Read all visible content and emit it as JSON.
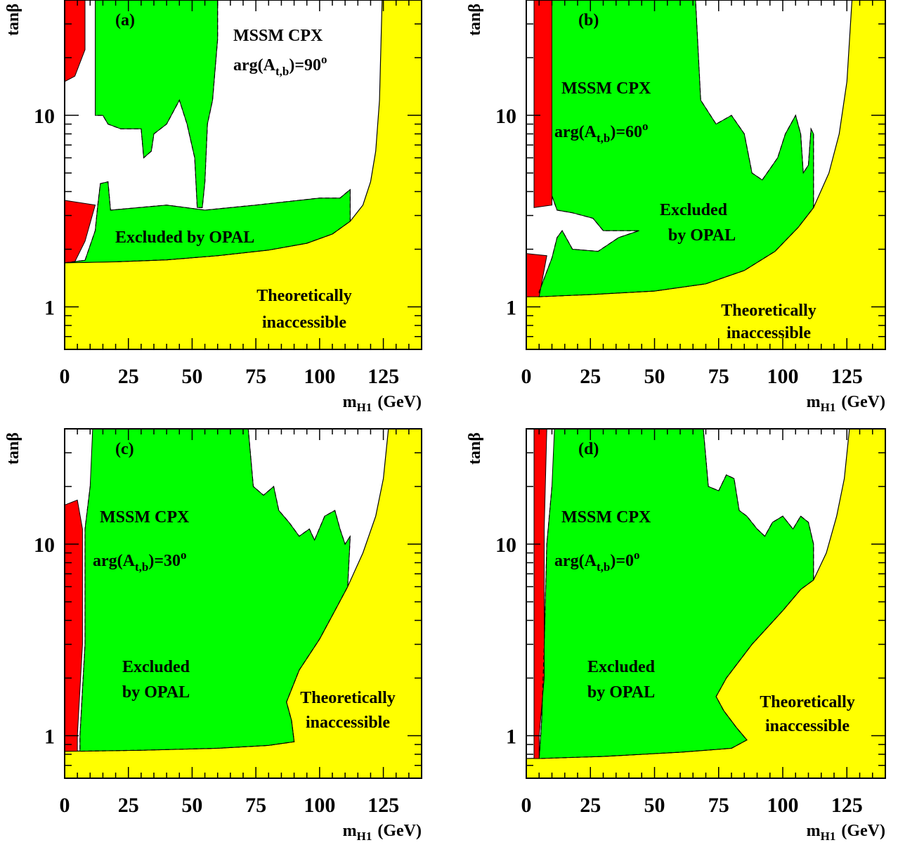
{
  "colors": {
    "excluded": "#00ff00",
    "theory": "#ffff00",
    "red": "#ff0000",
    "border": "#000000",
    "background": "#ffffff"
  },
  "chart_data": [
    {
      "panel": "(a)",
      "type": "area",
      "xlabel": "m",
      "xlabel_sub": "H1",
      "xlabel_unit": "(GeV)",
      "ylabel": "tanβ",
      "xlim": [
        0,
        140
      ],
      "ylim": [
        0.6,
        40
      ],
      "yscale": "log",
      "xticks": [
        "0",
        "25",
        "50",
        "75",
        "100",
        "125"
      ],
      "yticks": [
        "1",
        "10"
      ],
      "annotations": {
        "model": "MSSM CPX",
        "phase": "arg(A",
        "phase_sub": "t,b",
        "phase_value": ")=90",
        "phase_sup": "o",
        "excluded": "Excluded by OPAL",
        "theory_1": "Theoretically",
        "theory_2": "inaccessible"
      },
      "regions": {
        "theory_boundary": [
          [
            0,
            1.7
          ],
          [
            20,
            1.72
          ],
          [
            40,
            1.76
          ],
          [
            60,
            1.85
          ],
          [
            80,
            1.98
          ],
          [
            95,
            2.15
          ],
          [
            105,
            2.4
          ],
          [
            112,
            2.8
          ],
          [
            117,
            3.4
          ],
          [
            120,
            4.5
          ],
          [
            122,
            6.5
          ],
          [
            123.5,
            12
          ],
          [
            124.5,
            40
          ]
        ],
        "excluded_low": [
          [
            0,
            1.7
          ],
          [
            8,
            1.75
          ],
          [
            12,
            2.5
          ],
          [
            13,
            3.4
          ],
          [
            14,
            4.4
          ],
          [
            17,
            4.5
          ],
          [
            18,
            3.2
          ],
          [
            40,
            3.4
          ],
          [
            55,
            3.2
          ],
          [
            75,
            3.4
          ],
          [
            100,
            3.7
          ],
          [
            108,
            3.7
          ],
          [
            112,
            4.1
          ],
          [
            112,
            2.8
          ],
          [
            105,
            2.4
          ],
          [
            95,
            2.15
          ],
          [
            80,
            1.98
          ],
          [
            60,
            1.85
          ],
          [
            40,
            1.76
          ],
          [
            20,
            1.72
          ]
        ],
        "excluded_high": [
          [
            12,
            40
          ],
          [
            60,
            40
          ],
          [
            60,
            25
          ],
          [
            58,
            12
          ],
          [
            56,
            9
          ],
          [
            55,
            4.5
          ],
          [
            54,
            3.3
          ],
          [
            52,
            3.3
          ],
          [
            51,
            6
          ],
          [
            48,
            9
          ],
          [
            45,
            12
          ],
          [
            40,
            9
          ],
          [
            35,
            8
          ],
          [
            34,
            6.5
          ],
          [
            31,
            6
          ],
          [
            30,
            8.5
          ],
          [
            22,
            8.5
          ],
          [
            17,
            9
          ],
          [
            15,
            10
          ],
          [
            12,
            10
          ]
        ],
        "red_high": [
          [
            0,
            40
          ],
          [
            8,
            40
          ],
          [
            8,
            22
          ],
          [
            4,
            16
          ],
          [
            0,
            15
          ]
        ],
        "red_low": [
          [
            0,
            3.6
          ],
          [
            12,
            3.4
          ],
          [
            8,
            2.2
          ],
          [
            4,
            1.72
          ],
          [
            0,
            1.7
          ]
        ]
      }
    },
    {
      "panel": "(b)",
      "type": "area",
      "xlabel": "m",
      "xlabel_sub": "H1",
      "xlabel_unit": "(GeV)",
      "ylabel": "tanβ",
      "xlim": [
        0,
        140
      ],
      "ylim": [
        0.6,
        40
      ],
      "yscale": "log",
      "xticks": [
        "0",
        "25",
        "50",
        "75",
        "100",
        "125"
      ],
      "yticks": [
        "1",
        "10"
      ],
      "annotations": {
        "model": "MSSM CPX",
        "phase": "arg(A",
        "phase_sub": "t,b",
        "phase_value": ")=60",
        "phase_sup": "o",
        "excluded_1": "Excluded",
        "excluded_2": "by OPAL",
        "theory_1": "Theoretically",
        "theory_2": "inaccessible"
      },
      "regions": {
        "theory_boundary": [
          [
            0,
            1.13
          ],
          [
            25,
            1.16
          ],
          [
            50,
            1.21
          ],
          [
            70,
            1.32
          ],
          [
            85,
            1.55
          ],
          [
            97,
            1.95
          ],
          [
            106,
            2.6
          ],
          [
            112,
            3.3
          ],
          [
            118,
            5
          ],
          [
            122,
            8
          ],
          [
            125,
            15
          ],
          [
            127,
            40
          ]
        ],
        "excluded": [
          [
            10,
            40
          ],
          [
            66,
            40
          ],
          [
            68,
            12
          ],
          [
            74,
            9
          ],
          [
            80,
            10
          ],
          [
            85,
            8
          ],
          [
            88,
            5
          ],
          [
            92,
            4.6
          ],
          [
            98,
            6
          ],
          [
            101,
            8
          ],
          [
            105,
            10
          ],
          [
            107,
            8
          ],
          [
            108,
            5
          ],
          [
            110,
            5.5
          ],
          [
            111,
            8.5
          ],
          [
            112,
            8
          ],
          [
            112,
            3.3
          ],
          [
            106,
            2.6
          ],
          [
            97,
            1.95
          ],
          [
            85,
            1.55
          ],
          [
            70,
            1.32
          ],
          [
            50,
            1.21
          ],
          [
            25,
            1.16
          ],
          [
            5,
            1.13
          ],
          [
            5,
            1.2
          ],
          [
            10,
            1.8
          ],
          [
            12,
            2.3
          ],
          [
            14,
            2.5
          ],
          [
            18,
            2
          ],
          [
            28,
            1.95
          ],
          [
            36,
            2.3
          ],
          [
            44,
            2.5
          ],
          [
            30,
            2.5
          ],
          [
            26,
            2.9
          ],
          [
            18,
            3.1
          ],
          [
            12,
            3.2
          ],
          [
            10,
            3.8
          ]
        ],
        "red_high": [
          [
            3,
            40
          ],
          [
            10,
            40
          ],
          [
            10,
            3.4
          ],
          [
            3,
            3.3
          ]
        ],
        "red_low": [
          [
            0,
            1.9
          ],
          [
            8,
            1.85
          ],
          [
            5,
            1.13
          ],
          [
            0,
            1.13
          ]
        ]
      }
    },
    {
      "panel": "(c)",
      "type": "area",
      "xlabel": "m",
      "xlabel_sub": "H1",
      "xlabel_unit": "(GeV)",
      "ylabel": "tanβ",
      "xlim": [
        0,
        140
      ],
      "ylim": [
        0.6,
        40
      ],
      "yscale": "log",
      "xticks": [
        "0",
        "25",
        "50",
        "75",
        "100",
        "125"
      ],
      "yticks": [
        "1",
        "10"
      ],
      "annotations": {
        "model": "MSSM CPX",
        "phase": "arg(A",
        "phase_sub": "t,b",
        "phase_value": ")=30",
        "phase_sup": "o",
        "excluded_1": "Excluded",
        "excluded_2": "by OPAL",
        "theory_1": "Theoretically",
        "theory_2": "inaccessible"
      },
      "regions": {
        "theory_boundary": [
          [
            0,
            0.83
          ],
          [
            30,
            0.84
          ],
          [
            60,
            0.86
          ],
          [
            80,
            0.89
          ],
          [
            90,
            0.93
          ],
          [
            89,
            1.2
          ],
          [
            87,
            1.5
          ],
          [
            92,
            2.2
          ],
          [
            100,
            3.2
          ],
          [
            106,
            4.5
          ],
          [
            111,
            6
          ],
          [
            117,
            9
          ],
          [
            122,
            14
          ],
          [
            125,
            22
          ],
          [
            127,
            40
          ]
        ],
        "excluded": [
          [
            11,
            40
          ],
          [
            72,
            40
          ],
          [
            74,
            20
          ],
          [
            78,
            18
          ],
          [
            82,
            20
          ],
          [
            84,
            15
          ],
          [
            88,
            13
          ],
          [
            92,
            11
          ],
          [
            96,
            12
          ],
          [
            98,
            10.5
          ],
          [
            102,
            14
          ],
          [
            106,
            15
          ],
          [
            108,
            12
          ],
          [
            110,
            10
          ],
          [
            112,
            11
          ],
          [
            111,
            6
          ],
          [
            106,
            4.5
          ],
          [
            100,
            3.2
          ],
          [
            92,
            2.2
          ],
          [
            87,
            1.5
          ],
          [
            89,
            1.2
          ],
          [
            90,
            0.93
          ],
          [
            80,
            0.89
          ],
          [
            60,
            0.86
          ],
          [
            30,
            0.84
          ],
          [
            6,
            0.83
          ],
          [
            6,
            1
          ],
          [
            8,
            3
          ],
          [
            8,
            12
          ],
          [
            10,
            20
          ]
        ],
        "red": [
          [
            0,
            16
          ],
          [
            5,
            17
          ],
          [
            7,
            12
          ],
          [
            7,
            3
          ],
          [
            5,
            1
          ],
          [
            5,
            0.83
          ],
          [
            0,
            0.83
          ]
        ]
      }
    },
    {
      "panel": "(d)",
      "type": "area",
      "xlabel": "m",
      "xlabel_sub": "H1",
      "xlabel_unit": "(GeV)",
      "ylabel": "tanβ",
      "xlim": [
        0,
        140
      ],
      "ylim": [
        0.6,
        40
      ],
      "yscale": "log",
      "xticks": [
        "0",
        "25",
        "50",
        "75",
        "100",
        "125"
      ],
      "yticks": [
        "1",
        "10"
      ],
      "annotations": {
        "model": "MSSM CPX",
        "phase": "arg(A",
        "phase_sub": "t,b",
        "phase_value": ")=0",
        "phase_sup": "o",
        "excluded_1": "Excluded",
        "excluded_2": "by OPAL",
        "theory_1": "Theoretically",
        "theory_2": "inaccessible"
      },
      "regions": {
        "theory_boundary": [
          [
            0,
            0.76
          ],
          [
            30,
            0.78
          ],
          [
            60,
            0.82
          ],
          [
            80,
            0.86
          ],
          [
            86,
            0.95
          ],
          [
            82,
            1.1
          ],
          [
            77,
            1.35
          ],
          [
            74,
            1.6
          ],
          [
            78,
            2
          ],
          [
            88,
            3
          ],
          [
            100,
            4.5
          ],
          [
            107,
            5.8
          ],
          [
            112,
            6.5
          ],
          [
            117,
            9
          ],
          [
            121,
            14
          ],
          [
            124,
            22
          ],
          [
            126,
            40
          ]
        ],
        "excluded": [
          [
            11,
            40
          ],
          [
            69,
            40
          ],
          [
            71,
            20
          ],
          [
            75,
            19
          ],
          [
            78,
            23
          ],
          [
            81,
            22
          ],
          [
            83,
            15
          ],
          [
            86,
            14
          ],
          [
            90,
            12
          ],
          [
            93,
            11
          ],
          [
            96,
            13
          ],
          [
            100,
            14
          ],
          [
            104,
            12
          ],
          [
            107,
            14
          ],
          [
            110,
            13
          ],
          [
            112,
            10
          ],
          [
            112,
            6.5
          ],
          [
            107,
            5.8
          ],
          [
            100,
            4.5
          ],
          [
            88,
            3
          ],
          [
            78,
            2
          ],
          [
            74,
            1.6
          ],
          [
            77,
            1.35
          ],
          [
            82,
            1.1
          ],
          [
            86,
            0.95
          ],
          [
            80,
            0.86
          ],
          [
            60,
            0.82
          ],
          [
            30,
            0.78
          ],
          [
            5,
            0.76
          ],
          [
            6,
            1.2
          ],
          [
            7,
            3
          ],
          [
            8,
            10
          ],
          [
            10,
            20
          ]
        ],
        "red": [
          [
            3,
            40
          ],
          [
            8,
            40
          ],
          [
            7,
            12
          ],
          [
            7,
            2
          ],
          [
            5,
            1
          ],
          [
            5,
            0.76
          ],
          [
            3,
            0.76
          ]
        ]
      }
    }
  ]
}
